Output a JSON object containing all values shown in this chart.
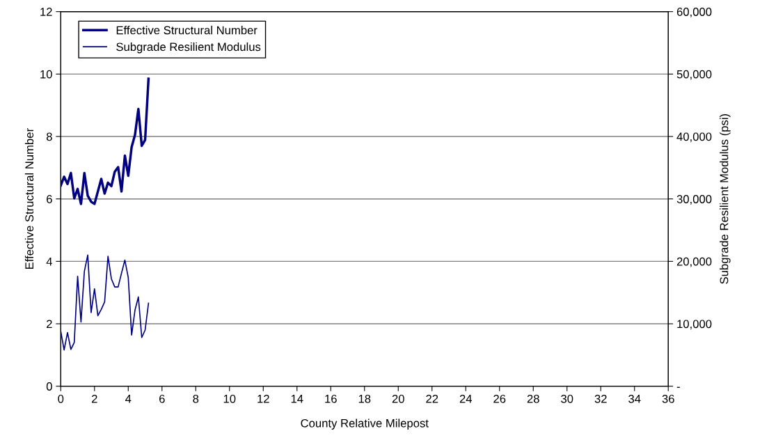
{
  "chart_data": {
    "type": "line",
    "xlabel": "County Relative Milepost",
    "ylabel": "Effective Structural Number",
    "y2label": "Subgrade Resilient Modulus (psi)",
    "x": [
      0,
      0.2,
      0.4,
      0.6,
      0.8,
      1.0,
      1.2,
      1.4,
      1.6,
      1.8,
      2.0,
      2.2,
      2.4,
      2.6,
      2.8,
      3.0,
      3.2,
      3.4,
      3.6,
      3.8,
      4.0,
      4.2,
      4.4,
      4.6,
      4.8,
      5.0,
      5.2
    ],
    "series": [
      {
        "name": "Effective Structural Number",
        "color": "#000080",
        "values": [
          6.43,
          6.71,
          6.48,
          6.83,
          6.02,
          6.32,
          5.84,
          6.83,
          6.1,
          5.91,
          5.84,
          6.24,
          6.64,
          6.17,
          6.52,
          6.41,
          6.87,
          7.02,
          6.24,
          7.39,
          6.74,
          7.66,
          8.05,
          8.88,
          7.7,
          7.89,
          9.85
        ]
      },
      {
        "name": "Subgrade Resilient Modulus",
        "color": "#000080",
        "axis": "y2",
        "values": [
          8800,
          5800,
          8600,
          5900,
          7000,
          17600,
          10300,
          18400,
          21000,
          11800,
          15600,
          11300,
          12300,
          13500,
          20800,
          17200,
          15900,
          15900,
          18100,
          20200,
          17400,
          8200,
          12200,
          14300,
          7800,
          9000,
          13300
        ]
      }
    ],
    "xlim": [
      0,
      36
    ],
    "xticks": [
      0,
      2,
      4,
      6,
      8,
      10,
      12,
      14,
      16,
      18,
      20,
      22,
      24,
      26,
      28,
      30,
      32,
      34,
      36
    ],
    "ylim": [
      0,
      12
    ],
    "yticks": [
      0,
      2,
      4,
      6,
      8,
      10,
      12
    ],
    "y2lim": [
      0,
      60000
    ],
    "y2ticks": [
      {
        "value": 0,
        "label": "-"
      },
      {
        "value": 10000,
        "label": "10,000"
      },
      {
        "value": 20000,
        "label": "20,000"
      },
      {
        "value": 30000,
        "label": "30,000"
      },
      {
        "value": 40000,
        "label": "40,000"
      },
      {
        "value": 50000,
        "label": "50,000"
      },
      {
        "value": 60000,
        "label": "60,000"
      }
    ],
    "grid": "y",
    "legend": "top left",
    "marker": "none",
    "line_style": "solid"
  }
}
